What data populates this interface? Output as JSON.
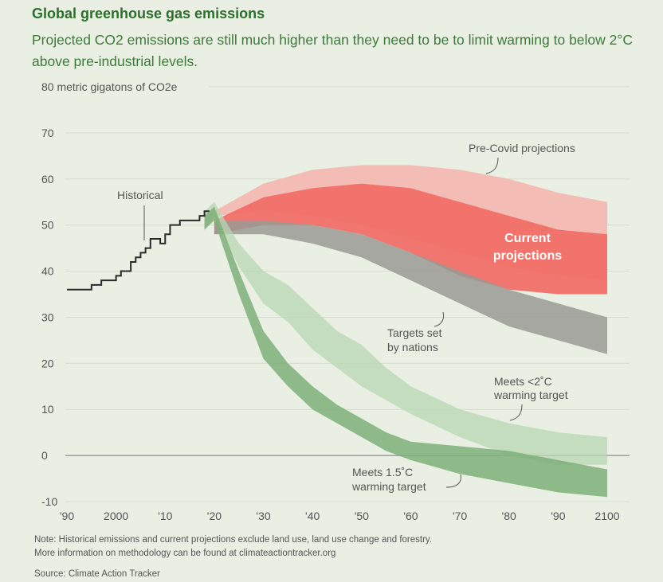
{
  "header": {
    "title": "Global greenhouse gas emissions",
    "subtitle": "Projected CO2 emissions are still much higher than they need to be to limit warming to below 2°C above pre-industrial levels."
  },
  "footer": {
    "note_line1": "Note: Historical emissions and current projections exclude land use, land use change and forestry.",
    "note_line2": "More information on methodology can be found at climateactiontracker.org",
    "source": "Source: Climate Action Tracker"
  },
  "colors": {
    "background": "#e9efe2",
    "historical": "#2a2a2a",
    "pre_covid": "#f3b8b2",
    "current": "#f26b66",
    "targets": "#9a9a94",
    "target_2c": "#b7d7b1",
    "target_15c": "#7eaf79",
    "title": "#2c6e2c"
  },
  "chart_data": {
    "type": "area",
    "title": "Global greenhouse gas emissions",
    "ylabel": "metric gigatons of CO2e",
    "ylim": [
      -10,
      80
    ],
    "xlim": [
      1990,
      2100
    ],
    "y_ticks": [
      "-10",
      "0",
      "10",
      "20",
      "30",
      "40",
      "50",
      "60",
      "70",
      "80 metric gigatons of CO2e"
    ],
    "y_tick_values": [
      -10,
      0,
      10,
      20,
      30,
      40,
      50,
      60,
      70,
      80
    ],
    "x_ticks": [
      "'90",
      "2000",
      "'10",
      "'20",
      "'30",
      "'40",
      "'50",
      "'60",
      "'70",
      "'80",
      "'90",
      "2100"
    ],
    "x_tick_values": [
      1990,
      2000,
      2010,
      2020,
      2030,
      2040,
      2050,
      2060,
      2070,
      2080,
      2090,
      2100
    ],
    "grid": true,
    "series": [
      {
        "name": "Historical",
        "kind": "line",
        "x": [
          1990,
          1992,
          1994,
          1995,
          1996,
          1997,
          1998,
          1999,
          2000,
          2001,
          2002,
          2003,
          2004,
          2005,
          2006,
          2007,
          2008,
          2009,
          2010,
          2011,
          2012,
          2013,
          2014,
          2015,
          2016,
          2017,
          2018,
          2019
        ],
        "y": [
          36,
          36,
          36,
          37,
          37,
          38,
          38,
          38,
          39,
          40,
          40,
          42,
          43,
          44,
          45,
          47,
          47,
          46,
          48,
          50,
          50,
          51,
          51,
          51,
          51,
          52,
          53,
          53
        ]
      },
      {
        "name": "Pre-Covid projections",
        "kind": "band",
        "x": [
          2020,
          2030,
          2040,
          2050,
          2060,
          2070,
          2080,
          2090,
          2100
        ],
        "lower": [
          52,
          53,
          52,
          50,
          47,
          44,
          41,
          39,
          38
        ],
        "upper": [
          53,
          59,
          62,
          63,
          63,
          62,
          60,
          57,
          55
        ]
      },
      {
        "name": "Current projections",
        "kind": "band",
        "x": [
          2020,
          2030,
          2040,
          2050,
          2060,
          2070,
          2080,
          2090,
          2100
        ],
        "lower": [
          48,
          50,
          50,
          48,
          44,
          39,
          36,
          35,
          35
        ],
        "upper": [
          51,
          56,
          58,
          59,
          58,
          55,
          52,
          49,
          48
        ]
      },
      {
        "name": "Targets set by nations",
        "kind": "band",
        "x": [
          2020,
          2030,
          2040,
          2050,
          2060,
          2070,
          2080,
          2090,
          2100
        ],
        "lower": [
          48,
          48,
          46,
          43,
          38,
          33,
          28,
          25,
          22
        ],
        "upper": [
          51,
          51,
          50,
          48,
          44,
          40,
          36,
          33,
          30
        ]
      },
      {
        "name": "Meets <2°C warming target",
        "kind": "band",
        "x": [
          2018,
          2020,
          2025,
          2030,
          2035,
          2040,
          2045,
          2050,
          2055,
          2060,
          2070,
          2080,
          2090,
          2100
        ],
        "lower": [
          49,
          52,
          41,
          33,
          29,
          23,
          19,
          15,
          12,
          9,
          4,
          0,
          -2,
          -2
        ],
        "upper": [
          53,
          55,
          46,
          40,
          37,
          32,
          27,
          24,
          19,
          15,
          10,
          7,
          5,
          4
        ]
      },
      {
        "name": "Meets 1.5°C warming target",
        "kind": "band",
        "x": [
          2018,
          2020,
          2025,
          2030,
          2035,
          2040,
          2045,
          2050,
          2055,
          2060,
          2070,
          2080,
          2090,
          2100
        ],
        "lower": [
          49,
          51,
          35,
          21,
          15,
          10,
          7,
          4,
          1,
          -1,
          -4,
          -6,
          -8,
          -9
        ],
        "upper": [
          52,
          54,
          40,
          27,
          20,
          15,
          11,
          8,
          5,
          3,
          2,
          1,
          -1,
          -3
        ]
      }
    ],
    "annotations": [
      "Historical",
      "Pre-Covid projections",
      "Current projections",
      "Targets set by nations",
      "Meets <2°C warming target",
      "Meets 1.5°C warming target"
    ]
  },
  "labels": {
    "historical": "Historical",
    "pre_covid": "Pre-Covid projections",
    "current_1": "Current",
    "current_2": "projections",
    "targets_1": "Targets set",
    "targets_2": "by nations",
    "two_c_1": "Meets <2˚C",
    "two_c_2": "warming target",
    "one_five_1": "Meets 1.5˚C",
    "one_five_2": "warming target"
  }
}
